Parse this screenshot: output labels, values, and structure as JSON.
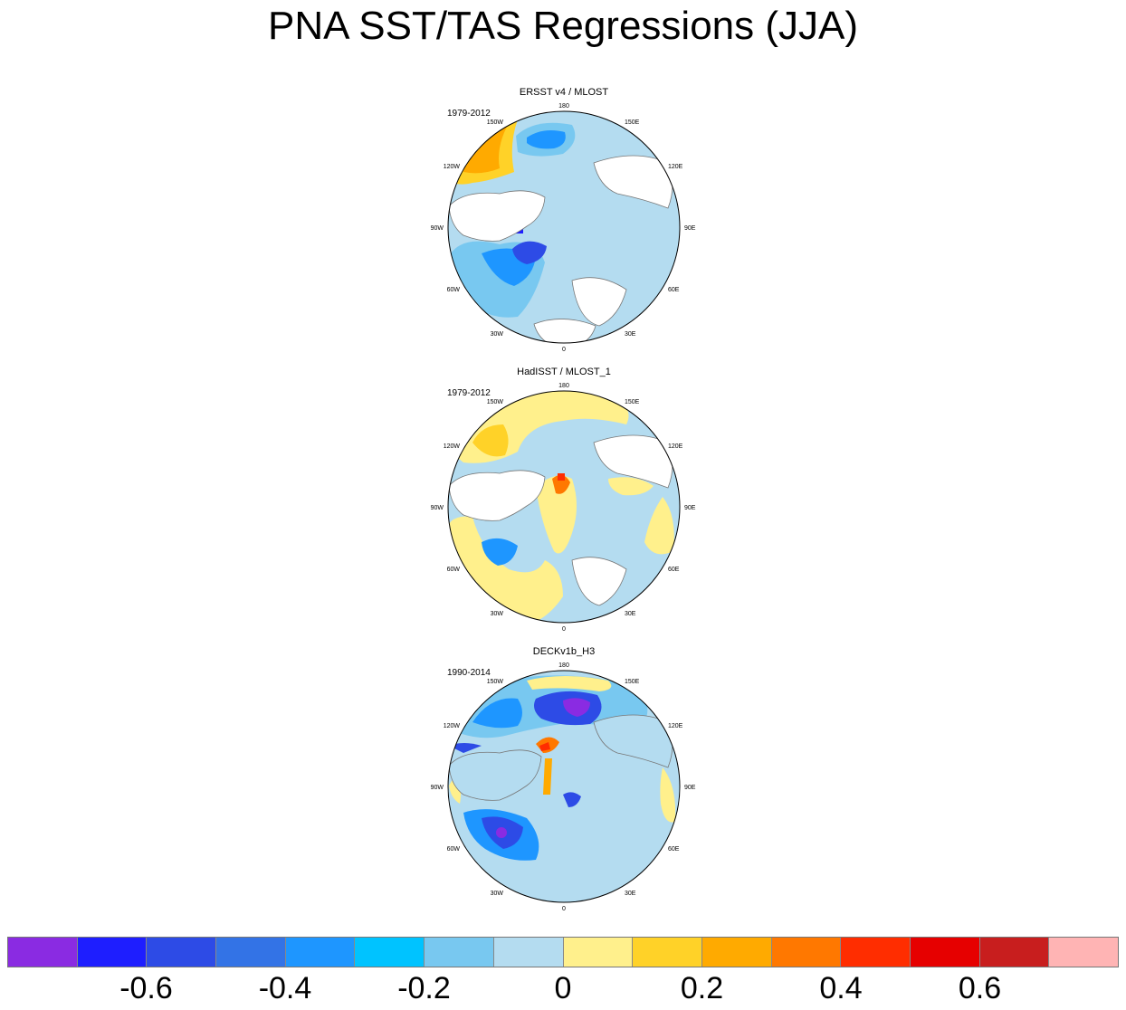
{
  "title": "PNA SST/TAS Regressions (JJA)",
  "panels": [
    {
      "name": "ERSST v4 / MLOST",
      "period": "1979-2012"
    },
    {
      "name": "HadISST / MLOST_1",
      "period": "1979-2012"
    },
    {
      "name": "DECKv1b_H3",
      "period": "1990-2014"
    }
  ],
  "longitude_labels": [
    "180",
    "150E",
    "120E",
    "90E",
    "60E",
    "30E",
    "0",
    "30W",
    "60W",
    "90W",
    "120W",
    "150W"
  ],
  "colorbar": {
    "colors": [
      "#8a2be2",
      "#1e1eff",
      "#2d4be6",
      "#3373e6",
      "#1e96ff",
      "#00c3ff",
      "#78c8f0",
      "#b4dcf0",
      "#fff08c",
      "#ffd228",
      "#ffaa00",
      "#ff7800",
      "#ff2d00",
      "#e60000",
      "#c81e1e",
      "#ffb4b4"
    ],
    "tick_labels": [
      "-0.6",
      "-0.4",
      "-0.2",
      "0",
      "0.2",
      "0.4",
      "0.6"
    ]
  },
  "chart_data": {
    "type": "heatmap",
    "projection": "north polar stereographic",
    "title": "PNA SST/TAS Regressions (JJA)",
    "subplots": [
      {
        "title": "ERSST v4 / MLOST",
        "period": "1979-2012"
      },
      {
        "title": "HadISST / MLOST_1",
        "period": "1979-2012"
      },
      {
        "title": "DECKv1b_H3",
        "period": "1990-2014"
      }
    ],
    "color_levels": [
      -0.7,
      -0.6,
      -0.5,
      -0.4,
      -0.3,
      -0.2,
      -0.1,
      0,
      0.1,
      0.2,
      0.3,
      0.4,
      0.5,
      0.6,
      0.7
    ],
    "colorbar_ticks": [
      -0.6,
      -0.4,
      -0.2,
      0,
      0.2,
      0.4,
      0.6
    ]
  }
}
